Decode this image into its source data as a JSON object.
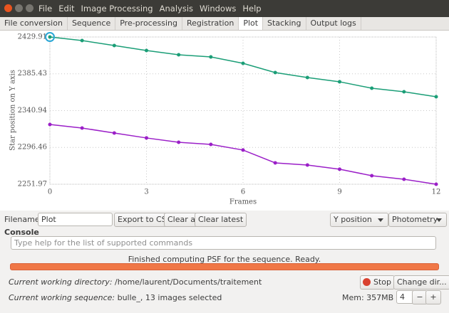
{
  "menu": [
    "File",
    "Edit",
    "Image Processing",
    "Analysis",
    "Windows",
    "Help"
  ],
  "tabs": [
    "File conversion",
    "Sequence",
    "Pre-processing",
    "Registration",
    "Plot",
    "Stacking",
    "Output logs"
  ],
  "chart_data": {
    "type": "line",
    "y_label": "Star position on Y axis",
    "x_label": "Frames",
    "x": [
      0,
      1,
      2,
      3,
      4,
      5,
      6,
      7,
      8,
      9,
      10,
      11,
      12
    ],
    "series": [
      {
        "color": "#1b9e77",
        "values": [
          2429.91,
          2425.6,
          2419.6,
          2413.6,
          2408.4,
          2405.8,
          2398.1,
          2386.9,
          2380.9,
          2375.8,
          2368.0,
          2363.7,
          2357.7
        ]
      },
      {
        "color": "#9b1fc8",
        "values": [
          2324.2,
          2319.9,
          2313.9,
          2307.9,
          2302.7,
          2300.1,
          2293.3,
          2277.8,
          2275.2,
          2270.1,
          2262.3,
          2258.0,
          2251.97
        ]
      }
    ],
    "xlim": [
      0,
      12
    ],
    "xticks": [
      0,
      3,
      6,
      9,
      12
    ],
    "ylim": [
      2251.97,
      2429.91
    ],
    "yticks": [
      2251.97,
      2296.46,
      2340.94,
      2385.43,
      2429.91
    ],
    "grid": true
  },
  "controls": {
    "filename_label": "Filename:",
    "filename": "Plot",
    "export": "Export to CSV",
    "clear_all": "Clear all",
    "clear_latest": "Clear latest",
    "y_dropdown": "Y position",
    "mode_dropdown": "Photometry"
  },
  "console": {
    "title": "Console",
    "placeholder": "Type help for the list of supported commands",
    "status": "Finished computing PSF for the sequence. Ready."
  },
  "footer": {
    "dir_label": "Current working directory:",
    "dir": "/home/laurent/Documents/traitement",
    "stop": "Stop",
    "change_dir": "Change dir...",
    "seq_label": "Current working sequence:",
    "seq": "bulle_, 13 images selected",
    "mem": "Mem: 357MB",
    "spin_value": 4,
    "minus": "−",
    "plus": "+"
  }
}
